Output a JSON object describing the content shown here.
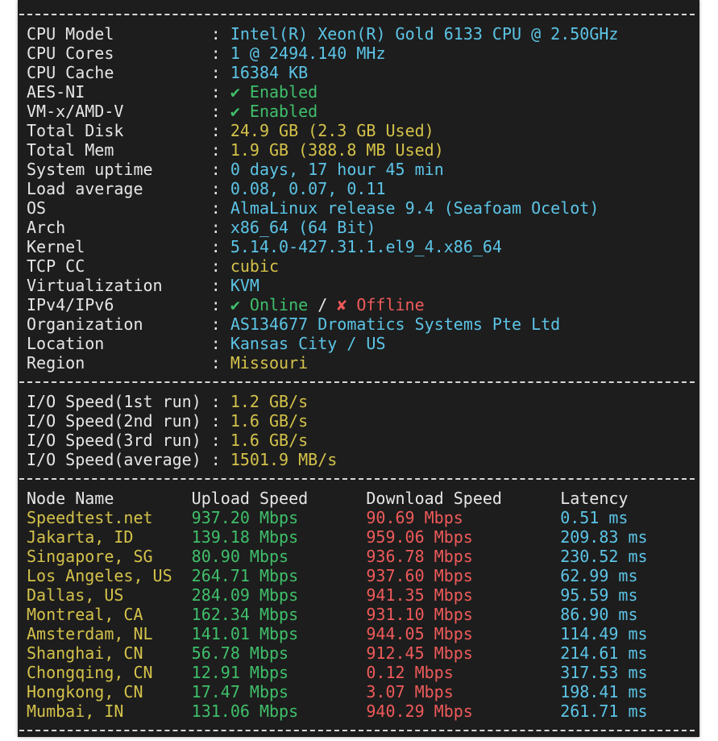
{
  "separator": ":",
  "system_info": [
    {
      "label": "CPU Model",
      "value": "Intel(R) Xeon(R) Gold 6133 CPU @ 2.50GHz"
    },
    {
      "label": "CPU Cores",
      "value": "1 @ 2494.140 MHz"
    },
    {
      "label": "CPU Cache",
      "value": "16384 KB"
    },
    {
      "label": "AES-NI",
      "value": "✔ Enabled"
    },
    {
      "label": "VM-x/AMD-V",
      "value": "✔ Enabled"
    },
    {
      "label": "Total Disk",
      "value": "24.9 GB (2.3 GB Used)"
    },
    {
      "label": "Total Mem",
      "value": "1.9 GB (388.8 MB Used)"
    },
    {
      "label": "System uptime",
      "value": "0 days, 17 hour 45 min"
    },
    {
      "label": "Load average",
      "value": "0.08, 0.07, 0.11"
    },
    {
      "label": "OS",
      "value": "AlmaLinux release 9.4 (Seafoam Ocelot)"
    },
    {
      "label": "Arch",
      "value": "x86_64 (64 Bit)"
    },
    {
      "label": "Kernel",
      "value": "5.14.0-427.31.1.el9_4.x86_64"
    },
    {
      "label": "TCP CC",
      "value": "cubic"
    },
    {
      "label": "Virtualization",
      "value": "KVM"
    },
    {
      "label": "IPv4/IPv6",
      "online": "✔ Online",
      "slash": "/",
      "offline": "✘ Offline"
    },
    {
      "label": "Organization",
      "value": "AS134677 Dromatics Systems Pte Ltd"
    },
    {
      "label": "Location",
      "value": "Kansas City / US"
    },
    {
      "label": "Region",
      "value": "Missouri"
    }
  ],
  "io_speed": [
    {
      "label": "I/O Speed(1st run)",
      "value": "1.2 GB/s"
    },
    {
      "label": "I/O Speed(2nd run)",
      "value": "1.6 GB/s"
    },
    {
      "label": "I/O Speed(3rd run)",
      "value": "1.6 GB/s"
    },
    {
      "label": "I/O Speed(average)",
      "value": "1501.9 MB/s"
    }
  ],
  "speedtest": {
    "headers": [
      "Node Name",
      "Upload Speed",
      "Download Speed",
      "Latency"
    ],
    "rows": [
      [
        "Speedtest.net",
        "937.20 Mbps",
        "90.69 Mbps",
        "0.51 ms"
      ],
      [
        "Jakarta, ID",
        "139.18 Mbps",
        "959.06 Mbps",
        "209.83 ms"
      ],
      [
        "Singapore, SG",
        "80.90 Mbps",
        "936.78 Mbps",
        "230.52 ms"
      ],
      [
        "Los Angeles, US",
        "264.71 Mbps",
        "937.60 Mbps",
        "62.99 ms"
      ],
      [
        "Dallas, US",
        "284.09 Mbps",
        "941.35 Mbps",
        "95.59 ms"
      ],
      [
        "Montreal, CA",
        "162.34 Mbps",
        "931.10 Mbps",
        "86.90 ms"
      ],
      [
        "Amsterdam, NL",
        "141.01 Mbps",
        "944.05 Mbps",
        "114.49 ms"
      ],
      [
        "Shanghai, CN",
        "56.78 Mbps",
        "912.45 Mbps",
        "214.61 ms"
      ],
      [
        "Chongqing, CN",
        "12.91 Mbps",
        "0.12 Mbps",
        "317.53 ms"
      ],
      [
        "Hongkong, CN",
        "17.47 Mbps",
        "3.07 Mbps",
        "198.41 ms"
      ],
      [
        "Mumbai, IN",
        "131.06 Mbps",
        "940.29 Mbps",
        "261.71 ms"
      ]
    ]
  }
}
